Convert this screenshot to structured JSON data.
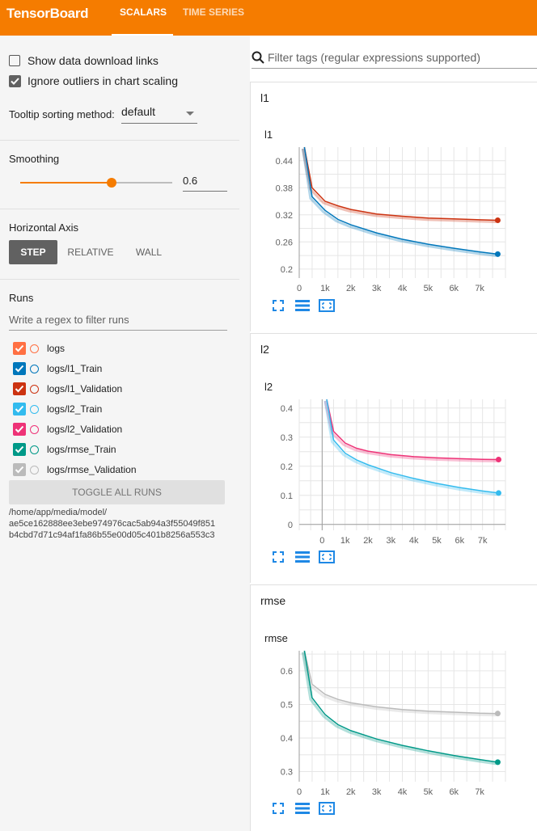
{
  "header": {
    "brand": "TensorBoard",
    "tabs": [
      {
        "label": "SCALARS",
        "active": true
      },
      {
        "label": "TIME SERIES",
        "active": false
      }
    ],
    "accent": "#f57c00"
  },
  "sidebar": {
    "show_download_links": {
      "label": "Show data download links",
      "checked": false
    },
    "ignore_outliers": {
      "label": "Ignore outliers in chart scaling",
      "checked": true
    },
    "tooltip_sorting": {
      "label": "Tooltip sorting method:",
      "value": "default"
    },
    "smoothing": {
      "title": "Smoothing",
      "value": "0.6",
      "level": 0.6
    },
    "horizontal_axis": {
      "title": "Horizontal Axis",
      "options": [
        "STEP",
        "RELATIVE",
        "WALL"
      ],
      "selected": "STEP"
    },
    "runs": {
      "title": "Runs",
      "filter_placeholder": "Write a regex to filter runs",
      "items": [
        {
          "name": "logs",
          "color": "#ff7043",
          "checked": true
        },
        {
          "name": "logs/l1_Train",
          "color": "#0077bb",
          "checked": true
        },
        {
          "name": "logs/l1_Validation",
          "color": "#cc3311",
          "checked": true
        },
        {
          "name": "logs/l2_Train",
          "color": "#33bbee",
          "checked": true
        },
        {
          "name": "logs/l2_Validation",
          "color": "#ee3377",
          "checked": true
        },
        {
          "name": "logs/rmse_Train",
          "color": "#009988",
          "checked": true
        },
        {
          "name": "logs/rmse_Validation",
          "color": "#bbbbbb",
          "checked": true
        }
      ],
      "toggle_all_label": "TOGGLE ALL RUNS",
      "path_lines": [
        "/home/app/media/model/",
        "ae5ce162888ee3ebe974976cac5ab94a3f55049f851",
        "b4cbd7d71c94af1fa86b55e00d05c401b8256a553c3"
      ]
    }
  },
  "main": {
    "search_placeholder": "Filter tags (regular expressions supported)",
    "groups": [
      {
        "name": "l1",
        "card_title": "l1"
      },
      {
        "name": "l2",
        "card_title": "l2"
      },
      {
        "name": "rmse",
        "card_title": "rmse"
      }
    ]
  },
  "chart_data": [
    {
      "type": "line",
      "title": "l1",
      "xlabel": "",
      "ylabel": "",
      "xlim": [
        0,
        8000
      ],
      "ylim": [
        0.18,
        0.47
      ],
      "xticks": [
        0,
        1000,
        2000,
        3000,
        4000,
        5000,
        6000,
        7000
      ],
      "xtick_labels": [
        "0",
        "1k",
        "2k",
        "3k",
        "4k",
        "5k",
        "6k",
        "7k"
      ],
      "yticks": [
        0.2,
        0.26,
        0.32,
        0.38,
        0.44
      ],
      "ytick_labels": [
        "0.2",
        "0.26",
        "0.32",
        "0.38",
        "0.44"
      ],
      "grid": true,
      "series": [
        {
          "name": "logs/l1_Validation",
          "color": "#cc3311",
          "x": [
            200,
            500,
            1000,
            1500,
            2000,
            3000,
            4000,
            5000,
            6000,
            7000,
            7700
          ],
          "y": [
            0.47,
            0.38,
            0.35,
            0.34,
            0.332,
            0.322,
            0.317,
            0.313,
            0.311,
            0.309,
            0.308
          ]
        },
        {
          "name": "logs/l1_Train",
          "color": "#0077bb",
          "x": [
            200,
            500,
            1000,
            1500,
            2000,
            3000,
            4000,
            5000,
            6000,
            7000,
            7700
          ],
          "y": [
            0.47,
            0.36,
            0.33,
            0.31,
            0.298,
            0.28,
            0.266,
            0.255,
            0.246,
            0.238,
            0.233
          ]
        }
      ]
    },
    {
      "type": "line",
      "title": "l2",
      "xlabel": "",
      "ylabel": "",
      "xlim": [
        -1000,
        8000
      ],
      "ylim": [
        -0.02,
        0.43
      ],
      "xticks": [
        0,
        1000,
        2000,
        3000,
        4000,
        5000,
        6000,
        7000
      ],
      "xtick_labels": [
        "0",
        "1k",
        "2k",
        "3k",
        "4k",
        "5k",
        "6k",
        "7k"
      ],
      "yticks": [
        0,
        0.1,
        0.2,
        0.3,
        0.4
      ],
      "ytick_labels": [
        "0",
        "0.1",
        "0.2",
        "0.3",
        "0.4"
      ],
      "grid": true,
      "series": [
        {
          "name": "logs/l2_Validation",
          "color": "#ee3377",
          "x": [
            200,
            500,
            1000,
            1500,
            2000,
            3000,
            4000,
            5000,
            6000,
            7000,
            7700
          ],
          "y": [
            0.43,
            0.32,
            0.28,
            0.262,
            0.252,
            0.24,
            0.233,
            0.229,
            0.226,
            0.224,
            0.223
          ]
        },
        {
          "name": "logs/l2_Train",
          "color": "#33bbee",
          "x": [
            200,
            500,
            1000,
            1500,
            2000,
            3000,
            4000,
            5000,
            6000,
            7000,
            7700
          ],
          "y": [
            0.43,
            0.29,
            0.245,
            0.222,
            0.205,
            0.178,
            0.158,
            0.141,
            0.127,
            0.115,
            0.108
          ]
        }
      ]
    },
    {
      "type": "line",
      "title": "rmse",
      "xlabel": "",
      "ylabel": "",
      "xlim": [
        0,
        8000
      ],
      "ylim": [
        0.27,
        0.66
      ],
      "xticks": [
        0,
        1000,
        2000,
        3000,
        4000,
        5000,
        6000,
        7000
      ],
      "xtick_labels": [
        "0",
        "1k",
        "2k",
        "3k",
        "4k",
        "5k",
        "6k",
        "7k"
      ],
      "yticks": [
        0.3,
        0.4,
        0.5,
        0.6
      ],
      "ytick_labels": [
        "0.3",
        "0.4",
        "0.5",
        "0.6"
      ],
      "grid": true,
      "series": [
        {
          "name": "logs/rmse_Validation",
          "color": "#bbbbbb",
          "x": [
            200,
            500,
            1000,
            1500,
            2000,
            3000,
            4000,
            5000,
            6000,
            7000,
            7700
          ],
          "y": [
            0.66,
            0.56,
            0.53,
            0.515,
            0.505,
            0.493,
            0.485,
            0.48,
            0.477,
            0.474,
            0.473
          ]
        },
        {
          "name": "logs/rmse_Train",
          "color": "#009988",
          "x": [
            200,
            500,
            1000,
            1500,
            2000,
            3000,
            4000,
            5000,
            6000,
            7000,
            7700
          ],
          "y": [
            0.66,
            0.52,
            0.47,
            0.44,
            0.422,
            0.397,
            0.378,
            0.362,
            0.348,
            0.336,
            0.328
          ]
        }
      ]
    }
  ]
}
